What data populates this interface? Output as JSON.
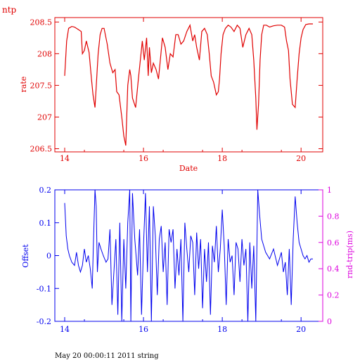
{
  "corner_label": "ntp",
  "footer_text": "May 20 00:00:11 2011 string",
  "colors": {
    "red": "#e00000",
    "blue": "#0000ee",
    "magenta": "#dd00dd"
  },
  "chart_data": [
    {
      "type": "line",
      "xlabel": "Date",
      "ylabel": "rate",
      "xlim": [
        13.75,
        20.55
      ],
      "ylim": [
        206.45,
        208.57
      ],
      "x_ticks": [
        "14",
        "16",
        "18",
        "20"
      ],
      "y_ticks": [
        "206.5",
        "207",
        "207.5",
        "208",
        "208.5"
      ],
      "series": [
        {
          "color": "#e00000",
          "x": [
            14.0,
            14.05,
            14.1,
            14.18,
            14.25,
            14.35,
            14.42,
            14.45,
            14.5,
            14.55,
            14.62,
            14.68,
            14.72,
            14.77,
            14.82,
            14.85,
            14.9,
            14.95,
            15.0,
            15.08,
            15.15,
            15.22,
            15.28,
            15.32,
            15.38,
            15.45,
            15.5,
            15.55,
            15.6,
            15.65,
            15.68,
            15.72,
            15.8,
            15.87,
            15.92,
            15.97,
            16.02,
            16.08,
            16.12,
            16.15,
            16.2,
            16.25,
            16.32,
            16.38,
            16.42,
            16.48,
            16.55,
            16.62,
            16.68,
            16.75,
            16.82,
            16.88,
            16.95,
            17.02,
            17.1,
            17.18,
            17.25,
            17.3,
            17.35,
            17.42,
            17.48,
            17.55,
            17.62,
            17.67,
            17.72,
            17.78,
            17.85,
            17.9,
            17.93,
            17.97,
            18.02,
            18.08,
            18.15,
            18.22,
            18.3,
            18.38,
            18.45,
            18.52,
            18.6,
            18.68,
            18.75,
            18.8,
            18.85,
            18.88,
            18.92,
            18.96,
            19.0,
            19.05,
            19.12,
            19.2,
            19.3,
            19.4,
            19.5,
            19.58,
            19.63,
            19.68,
            19.72,
            19.78,
            19.85,
            19.9,
            19.95,
            20.0,
            20.05,
            20.12,
            20.2,
            20.3
          ],
          "values": [
            207.65,
            208.2,
            208.4,
            208.43,
            208.42,
            208.38,
            208.35,
            208.0,
            208.05,
            208.2,
            208.02,
            207.6,
            207.35,
            207.15,
            207.7,
            208.0,
            208.3,
            208.4,
            208.4,
            208.15,
            207.85,
            207.7,
            207.75,
            207.4,
            207.35,
            207.0,
            206.7,
            206.55,
            207.5,
            207.75,
            207.65,
            207.3,
            207.15,
            207.6,
            207.9,
            208.2,
            207.9,
            208.25,
            207.65,
            208.1,
            207.7,
            207.85,
            207.75,
            207.6,
            207.85,
            208.25,
            208.1,
            207.75,
            208.0,
            207.95,
            208.3,
            208.3,
            208.15,
            208.2,
            208.35,
            208.45,
            208.2,
            208.3,
            208.1,
            207.9,
            208.35,
            208.4,
            208.3,
            208.0,
            207.65,
            207.55,
            207.35,
            207.4,
            207.6,
            208.0,
            208.3,
            208.4,
            208.45,
            208.42,
            208.35,
            208.45,
            208.4,
            208.1,
            208.3,
            208.4,
            208.3,
            207.9,
            207.3,
            206.8,
            207.2,
            207.9,
            208.3,
            208.45,
            208.45,
            208.42,
            208.44,
            208.45,
            208.45,
            208.42,
            208.2,
            208.05,
            207.6,
            207.2,
            207.15,
            207.6,
            208.0,
            208.25,
            208.38,
            208.46,
            208.47,
            208.47
          ]
        }
      ]
    },
    {
      "type": "line",
      "ylabel": "Offset",
      "ylabel_right": "rnd-trip(ms)",
      "xlim": [
        13.75,
        20.55
      ],
      "ylim": [
        -0.2,
        0.2
      ],
      "ylim_right": [
        0,
        1
      ],
      "x_ticks": [
        "14",
        "16",
        "18",
        "20"
      ],
      "y_ticks": [
        "-0.2",
        "-0.1",
        "0",
        "0.1",
        "0.2"
      ],
      "y_ticks_right": [
        "0",
        "0.2",
        "0.4",
        "0.6",
        "0.8",
        "1"
      ],
      "series": [
        {
          "color": "#0000ee",
          "x": [
            14.0,
            14.04,
            14.08,
            14.12,
            14.18,
            14.25,
            14.3,
            14.35,
            14.4,
            14.45,
            14.5,
            14.55,
            14.6,
            14.65,
            14.7,
            14.73,
            14.77,
            14.8,
            14.83,
            14.87,
            14.92,
            14.98,
            15.05,
            15.1,
            15.15,
            15.2,
            15.25,
            15.3,
            15.35,
            15.4,
            15.45,
            15.5,
            15.55,
            15.6,
            15.65,
            15.68,
            15.72,
            15.78,
            15.85,
            15.9,
            15.95,
            16.0,
            16.05,
            16.1,
            16.15,
            16.2,
            16.25,
            16.3,
            16.35,
            16.4,
            16.45,
            16.5,
            16.55,
            16.6,
            16.65,
            16.7,
            16.75,
            16.8,
            16.85,
            16.9,
            16.95,
            17.0,
            17.05,
            17.1,
            17.15,
            17.2,
            17.25,
            17.3,
            17.35,
            17.4,
            17.45,
            17.5,
            17.55,
            17.6,
            17.65,
            17.7,
            17.75,
            17.8,
            17.85,
            17.9,
            17.95,
            18.0,
            18.05,
            18.1,
            18.15,
            18.2,
            18.25,
            18.3,
            18.35,
            18.4,
            18.45,
            18.5,
            18.55,
            18.6,
            18.65,
            18.7,
            18.75,
            18.8,
            18.85,
            18.9,
            18.95,
            19.0,
            19.05,
            19.1,
            19.2,
            19.3,
            19.4,
            19.5,
            19.55,
            19.6,
            19.65,
            19.7,
            19.75,
            19.8,
            19.85,
            19.9,
            19.95,
            20.0,
            20.05,
            20.1,
            20.15,
            20.2,
            20.25,
            20.3
          ],
          "values": [
            0.16,
            0.06,
            0.02,
            0.0,
            -0.02,
            -0.03,
            0.01,
            -0.03,
            -0.05,
            -0.03,
            0.02,
            -0.02,
            0.0,
            -0.04,
            -0.1,
            0.04,
            0.2,
            0.15,
            -0.05,
            0.04,
            0.02,
            0.0,
            -0.02,
            -0.01,
            0.08,
            -0.15,
            -0.05,
            0.05,
            -0.18,
            0.1,
            -0.2,
            0.05,
            -0.1,
            0.1,
            0.2,
            -0.2,
            0.19,
            0.05,
            -0.06,
            0.08,
            -0.18,
            0.03,
            0.19,
            -0.05,
            0.15,
            -0.2,
            0.15,
            0.06,
            -0.12,
            0.05,
            0.09,
            -0.05,
            0.04,
            -0.15,
            0.08,
            0.04,
            0.08,
            -0.1,
            0.02,
            -0.06,
            0.05,
            -0.2,
            0.1,
            0.02,
            -0.05,
            0.06,
            0.04,
            -0.12,
            0.07,
            -0.04,
            0.05,
            -0.16,
            0.02,
            -0.08,
            0.04,
            -0.18,
            0.03,
            -0.02,
            0.09,
            -0.05,
            0.02,
            0.14,
            0.03,
            -0.15,
            0.05,
            -0.02,
            0.0,
            -0.12,
            0.04,
            0.02,
            -0.08,
            0.05,
            -0.03,
            0.02,
            -0.2,
            0.04,
            -0.1,
            0.03,
            -0.2,
            0.2,
            0.12,
            0.05,
            0.03,
            0.01,
            -0.01,
            0.02,
            -0.03,
            0.01,
            -0.05,
            -0.02,
            -0.12,
            0.02,
            -0.15,
            0.05,
            0.18,
            0.1,
            0.04,
            0.02,
            0.0,
            -0.01,
            0.0,
            -0.02,
            -0.01,
            -0.01
          ]
        }
      ]
    }
  ]
}
